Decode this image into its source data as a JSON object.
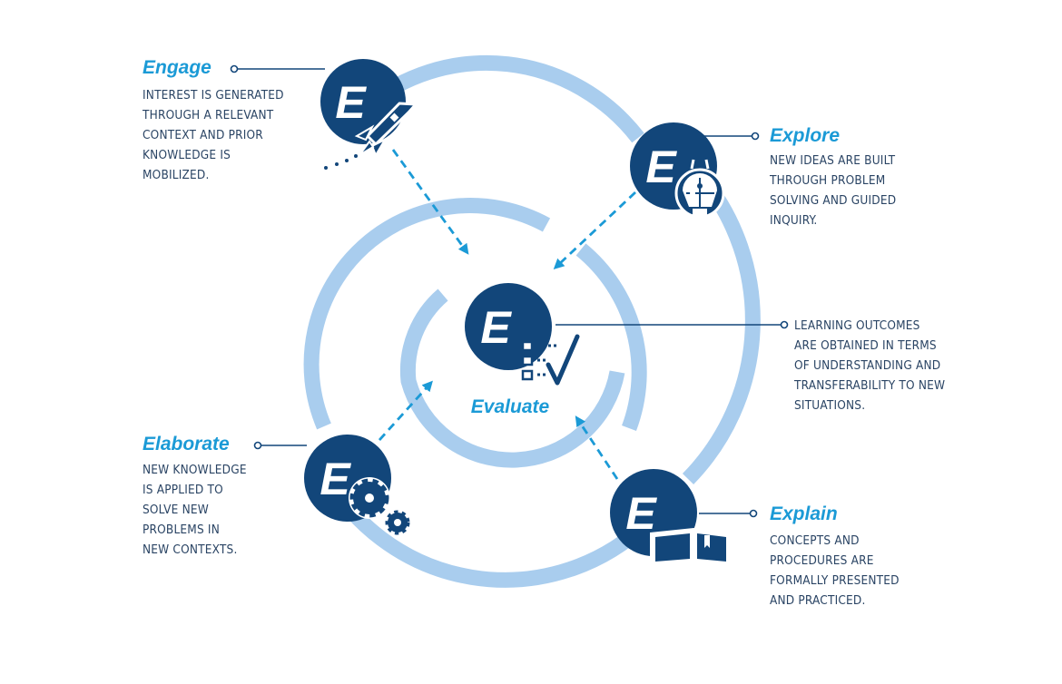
{
  "colors": {
    "ring": "#a9cdee",
    "dark_blue": "#12467a",
    "accent": "#1b9ad6",
    "text": "#2a4464"
  },
  "stages": {
    "engage": {
      "title": "Engage",
      "icon": "rocket-icon",
      "letter": "E",
      "description": "INTEREST IS GENERATED\nTHROUGH A RELEVANT\nCONTEXT AND PRIOR\nKNOWLEDGE IS\nMOBILIZED."
    },
    "explore": {
      "title": "Explore",
      "icon": "lightbulb-puzzle-icon",
      "letter": "E",
      "description": "NEW IDEAS ARE BUILT\nTHROUGH PROBLEM\nSOLVING AND GUIDED\nINQUIRY."
    },
    "evaluate": {
      "title": "Evaluate",
      "icon": "checklist-icon",
      "letter": "E",
      "description": "LEARNING OUTCOMES\nARE OBTAINED IN TERMS\nOF UNDERSTANDING AND\nTRANSFERABILITY TO NEW\nSITUATIONS."
    },
    "elaborate": {
      "title": "Elaborate",
      "icon": "gears-icon",
      "letter": "E",
      "description": "NEW KNOWLEDGE\nIS APPLIED TO\nSOLVE NEW\nPROBLEMS IN\nNEW CONTEXTS."
    },
    "explain": {
      "title": "Explain",
      "icon": "open-book-icon",
      "letter": "E",
      "description": "CONCEPTS AND\nPROCEDURES ARE\nFORMALLY PRESENTED\nAND PRACTICED."
    }
  }
}
